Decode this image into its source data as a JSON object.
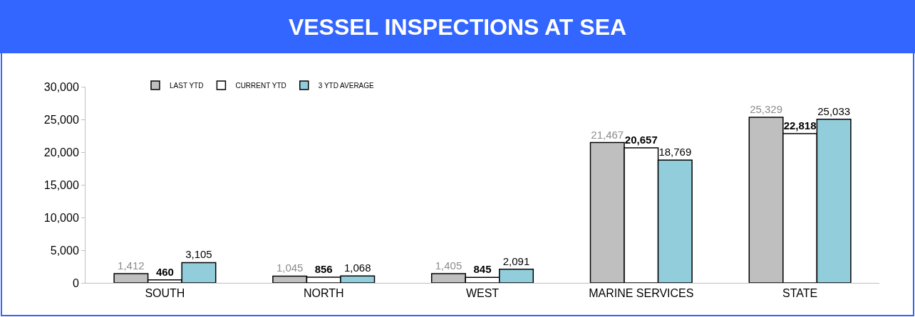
{
  "chart_data": {
    "type": "bar",
    "title": "VESSEL INSPECTIONS AT SEA",
    "categories": [
      "SOUTH",
      "NORTH",
      "WEST",
      "MARINE SERVICES",
      "STATE"
    ],
    "series": [
      {
        "name": "LAST YTD",
        "color": "#bfbfbf",
        "values": [
          1412,
          1045,
          1405,
          21467,
          25329
        ],
        "value_labels": [
          "1,412",
          "1,045",
          "1,405",
          "21,467",
          "25,329"
        ]
      },
      {
        "name": "CURRENT YTD",
        "color": "#ffffff",
        "values": [
          460,
          856,
          845,
          20657,
          22818
        ],
        "value_labels": [
          "460",
          "856",
          "845",
          "20,657",
          "22,818"
        ]
      },
      {
        "name": "3 YTD AVERAGE",
        "color": "#92cddc",
        "values": [
          3105,
          1068,
          2091,
          18769,
          25033
        ],
        "value_labels": [
          "3,105",
          "1,068",
          "2,091",
          "18,769",
          "25,033"
        ]
      }
    ],
    "ylim": [
      0,
      30000
    ],
    "yticks": [
      {
        "value": 0,
        "label": "0"
      },
      {
        "value": 5000,
        "label": "5,000"
      },
      {
        "value": 10000,
        "label": "10,000"
      },
      {
        "value": 15000,
        "label": "15,000"
      },
      {
        "value": 20000,
        "label": "20,000"
      },
      {
        "value": 25000,
        "label": "25,000"
      },
      {
        "value": 30000,
        "label": "30,000"
      }
    ],
    "legend": "top left"
  }
}
